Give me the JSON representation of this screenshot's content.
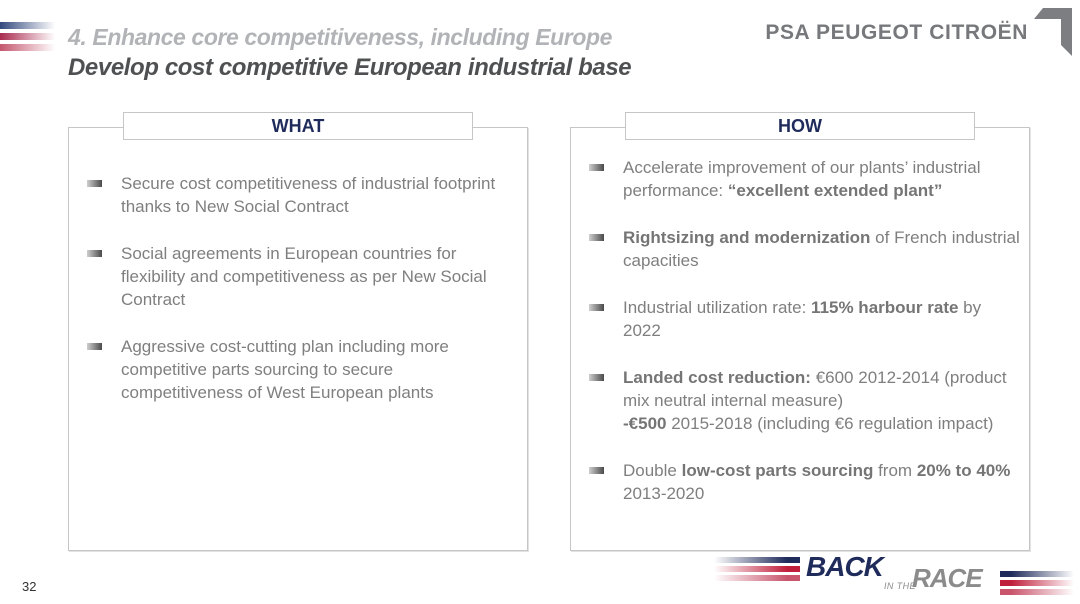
{
  "header": {
    "section_title": "4. Enhance core competitiveness, including Europe",
    "slide_title": "Develop cost competitive European industrial base",
    "brand_logo_text": "PSA PEUGEOT CITROËN"
  },
  "columns": [
    {
      "header": "WHAT",
      "bullets": [
        {
          "segments": [
            {
              "t": "Secure cost competitiveness of industrial footprint thanks to New Social Contract",
              "b": false
            }
          ]
        },
        {
          "segments": [
            {
              "t": "Social agreements in European countries for flexibility and competitiveness as per New Social Contract",
              "b": false
            }
          ]
        },
        {
          "segments": [
            {
              "t": "Aggressive cost-cutting plan including more competitive parts sourcing to secure competitiveness of West European plants",
              "b": false
            }
          ]
        }
      ]
    },
    {
      "header": "HOW",
      "bullets": [
        {
          "segments": [
            {
              "t": "Accelerate improvement of our plants’ industrial performance: ",
              "b": false
            },
            {
              "t": "“excellent extended plant”",
              "b": true
            }
          ]
        },
        {
          "segments": [
            {
              "t": "Rightsizing and modernization",
              "b": true
            },
            {
              "t": " of French industrial capacities",
              "b": false
            }
          ]
        },
        {
          "segments": [
            {
              "t": "Industrial utilization rate: ",
              "b": false
            },
            {
              "t": "115% harbour rate",
              "b": true
            },
            {
              "t": " by 2022",
              "b": false
            }
          ]
        },
        {
          "segments": [
            {
              "t": "Landed cost reduction:",
              "b": true
            },
            {
              "t": " €600 2012-2014 (product mix neutral internal measure)\n",
              "b": false
            },
            {
              "t": "-€500",
              "b": true
            },
            {
              "t": " 2015-2018 (including €6 regulation impact)",
              "b": false
            }
          ]
        },
        {
          "segments": [
            {
              "t": "Double ",
              "b": false
            },
            {
              "t": "low-cost parts sourcing",
              "b": true
            },
            {
              "t": " from ",
              "b": false
            },
            {
              "t": "20% to 40%",
              "b": true
            },
            {
              "t": " 2013-2020",
              "b": false
            }
          ]
        }
      ]
    }
  ],
  "footer": {
    "page_number": "32",
    "race_logo": {
      "word1": "BACK",
      "word2_small": "IN THE",
      "word3": "RACE"
    }
  },
  "colors": {
    "navy": "#1f2b5b",
    "stripe_blue": "#33497e",
    "stripe_red": "#c01f3c",
    "stripe_red_light": "#c9556c",
    "body_text_gray": "#7f7f7f",
    "title_gray_light": "#b1b3b6",
    "title_gray_dark": "#4f5052",
    "brand_gray": "#77787c",
    "box_border": "#c6c6c6"
  }
}
